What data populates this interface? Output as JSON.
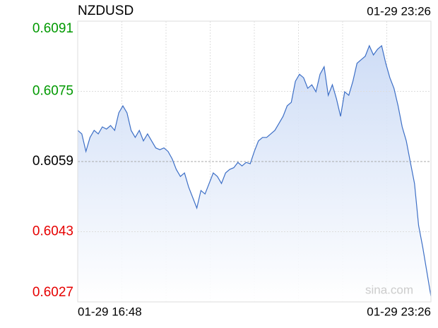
{
  "chart_data": {
    "type": "line",
    "title": "NZDUSD",
    "time": "01-29 23:26",
    "x_labels": [
      "01-29 16:48",
      "01-29 23:26"
    ],
    "ylim": [
      0.6027,
      0.6091
    ],
    "yticks": [
      0.6027,
      0.6043,
      0.6059,
      0.6075,
      0.6091
    ],
    "prev_close": 0.6059,
    "grid": true,
    "watermark": "sina.com",
    "up_color": "#009900",
    "down_color": "#e60000",
    "flat_color": "#000000",
    "series": [
      {
        "name": "NZDUSD",
        "color": "#3d6fc6",
        "values": [
          0.60661,
          0.60653,
          0.60613,
          0.60645,
          0.60661,
          0.60653,
          0.60669,
          0.60664,
          0.60672,
          0.60661,
          0.60701,
          0.60717,
          0.60701,
          0.60661,
          0.60645,
          0.60661,
          0.60637,
          0.60653,
          0.60637,
          0.60621,
          0.60617,
          0.60621,
          0.60613,
          0.60596,
          0.60572,
          0.60556,
          0.60564,
          0.60532,
          0.60508,
          0.60484,
          0.60524,
          0.60516,
          0.6054,
          0.60564,
          0.60556,
          0.6054,
          0.60564,
          0.60572,
          0.60576,
          0.60588,
          0.6058,
          0.60588,
          0.60585,
          0.60613,
          0.60637,
          0.60645,
          0.60645,
          0.60653,
          0.60661,
          0.60677,
          0.60693,
          0.60717,
          0.60725,
          0.60773,
          0.60789,
          0.60781,
          0.60757,
          0.60765,
          0.60749,
          0.60789,
          0.60806,
          0.60741,
          0.60765,
          0.60733,
          0.60693,
          0.60749,
          0.60741,
          0.60773,
          0.60814,
          0.60822,
          0.6083,
          0.60854,
          0.60833,
          0.60846,
          0.60854,
          0.60814,
          0.60781,
          0.60757,
          0.60717,
          0.60669,
          0.60637,
          0.60588,
          0.6054,
          0.60444,
          0.60395,
          0.60339,
          0.60283
        ]
      }
    ]
  }
}
